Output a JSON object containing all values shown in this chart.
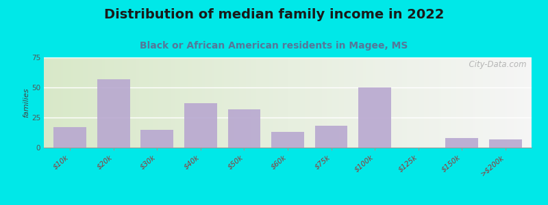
{
  "title": "Distribution of median family income in 2022",
  "subtitle": "Black or African American residents in Magee, MS",
  "categories": [
    "$10k",
    "$20k",
    "$30k",
    "$40k",
    "$50k",
    "$60k",
    "$75k",
    "$100k",
    "$125k",
    "$150k",
    ">$200k"
  ],
  "values": [
    17,
    57,
    15,
    37,
    32,
    13,
    18,
    50,
    0,
    8,
    7
  ],
  "bar_color": "#b8a8d0",
  "bg_outer": "#00e8e8",
  "bg_gradient_left": "#d8e8c8",
  "bg_gradient_right": "#f8f8f8",
  "ylabel": "families",
  "ylim": [
    0,
    75
  ],
  "yticks": [
    0,
    25,
    50,
    75
  ],
  "title_fontsize": 14,
  "subtitle_fontsize": 10,
  "tick_fontsize": 7.5,
  "ylabel_fontsize": 8,
  "watermark": "  City-Data.com",
  "watermark_icon": "ⓘ"
}
